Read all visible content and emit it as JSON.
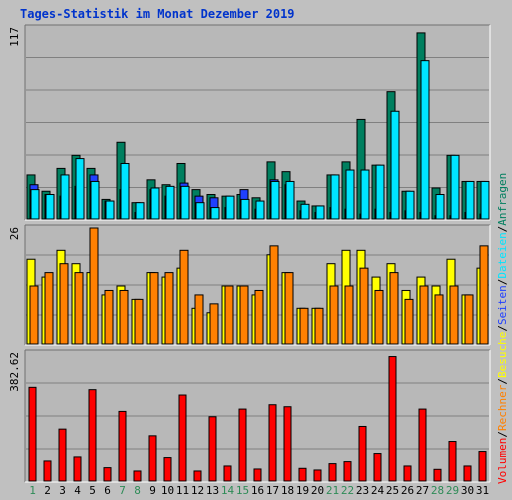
{
  "title": "Tages-Statistik im Monat Dezember 2019",
  "colors": {
    "background": "#c0c0c0",
    "panel": "#b8b8b8",
    "title": "#0033cc",
    "anfragen": "#007f5f",
    "dateien": "#00e5ff",
    "seiten": "#2040ff",
    "besuche": "#ffff00",
    "rechner": "#ff8000",
    "volumen": "#ff0000",
    "weekday_label": "#006400",
    "weekend_label": "#2e8b57"
  },
  "chart_data": [
    {
      "type": "bar",
      "name": "anfragen-dateien-seiten",
      "categories": [
        "1",
        "2",
        "3",
        "4",
        "5",
        "6",
        "7",
        "8",
        "9",
        "10",
        "11",
        "12",
        "13",
        "14",
        "15",
        "16",
        "17",
        "18",
        "19",
        "20",
        "21",
        "22",
        "23",
        "24",
        "25",
        "26",
        "27",
        "28",
        "29",
        "30",
        "31"
      ],
      "ymax_label": "117",
      "ylim": [
        0,
        117
      ],
      "series": [
        {
          "name": "Anfragen",
          "values": [
            27,
            17,
            31,
            39,
            31,
            12,
            47,
            10,
            24,
            21,
            34,
            18,
            15,
            14,
            15,
            13,
            35,
            29,
            11,
            8,
            27,
            35,
            61,
            33,
            78,
            17,
            114,
            19,
            39,
            23,
            23
          ]
        },
        {
          "name": "Dateien",
          "values": [
            18,
            15,
            27,
            37,
            23,
            11,
            34,
            10,
            19,
            20,
            20,
            10,
            7,
            14,
            12,
            11,
            23,
            23,
            9,
            8,
            27,
            30,
            30,
            33,
            66,
            17,
            97,
            15,
            39,
            23,
            23
          ]
        },
        {
          "name": "Seiten",
          "values": [
            21,
            15,
            14,
            20,
            27,
            11,
            18,
            4,
            18,
            14,
            22,
            14,
            13,
            7,
            18,
            6,
            24,
            21,
            5,
            4,
            7,
            6,
            3,
            6,
            4,
            5,
            4,
            2,
            2,
            4,
            3
          ]
        }
      ]
    },
    {
      "type": "bar",
      "name": "besuche-rechner",
      "categories": [
        "1",
        "2",
        "3",
        "4",
        "5",
        "6",
        "7",
        "8",
        "9",
        "10",
        "11",
        "12",
        "13",
        "14",
        "15",
        "16",
        "17",
        "18",
        "19",
        "20",
        "21",
        "22",
        "23",
        "24",
        "25",
        "26",
        "27",
        "28",
        "29",
        "30",
        "31"
      ],
      "ymax_label": "26",
      "ylim": [
        0,
        26
      ],
      "series": [
        {
          "name": "Besuche",
          "values": [
            19,
            15,
            21,
            18,
            16,
            11,
            13,
            10,
            16,
            15,
            17,
            8,
            7,
            13,
            13,
            11,
            20,
            16,
            8,
            8,
            18,
            21,
            21,
            15,
            18,
            12,
            15,
            13,
            19,
            11,
            17
          ]
        },
        {
          "name": "Rechner",
          "values": [
            13,
            16,
            18,
            16,
            26,
            12,
            12,
            10,
            16,
            16,
            21,
            11,
            9,
            13,
            13,
            12,
            22,
            16,
            8,
            8,
            13,
            13,
            17,
            12,
            16,
            10,
            13,
            11,
            13,
            11,
            22
          ]
        }
      ]
    },
    {
      "type": "bar",
      "name": "volumen",
      "categories": [
        "1",
        "2",
        "3",
        "4",
        "5",
        "6",
        "7",
        "8",
        "9",
        "10",
        "11",
        "12",
        "13",
        "14",
        "15",
        "16",
        "17",
        "18",
        "19",
        "20",
        "21",
        "22",
        "23",
        "24",
        "25",
        "26",
        "27",
        "28",
        "29",
        "30",
        "31"
      ],
      "ymax_label": "382.62",
      "ylim": [
        0,
        382.62
      ],
      "series": [
        {
          "name": "Volumen",
          "values": [
            280,
            60,
            155,
            72,
            273,
            40,
            208,
            30,
            135,
            70,
            257,
            30,
            192,
            45,
            215,
            36,
            228,
            222,
            38,
            33,
            52,
            58,
            163,
            82,
            372,
            45,
            215,
            35,
            118,
            45,
            88
          ]
        }
      ]
    }
  ],
  "x_labels": {
    "days": [
      "1",
      "2",
      "3",
      "4",
      "5",
      "6",
      "7",
      "8",
      "9",
      "10",
      "11",
      "12",
      "13",
      "14",
      "15",
      "16",
      "17",
      "18",
      "19",
      "20",
      "21",
      "22",
      "23",
      "24",
      "25",
      "26",
      "27",
      "28",
      "29",
      "30",
      "31"
    ],
    "weekend_days": [
      "1",
      "7",
      "8",
      "14",
      "15",
      "21",
      "22",
      "28",
      "29"
    ]
  },
  "side_legend": [
    {
      "label": "Volumen",
      "color": "#ff0000"
    },
    {
      "label": "Rechner",
      "color": "#ff8000"
    },
    {
      "label": "Besuche",
      "color": "#ffff00"
    },
    {
      "label": "Seiten",
      "color": "#2040ff"
    },
    {
      "label": "Dateien",
      "color": "#00e5ff"
    },
    {
      "label": "Anfragen",
      "color": "#007f5f"
    }
  ],
  "side_separator": "/"
}
